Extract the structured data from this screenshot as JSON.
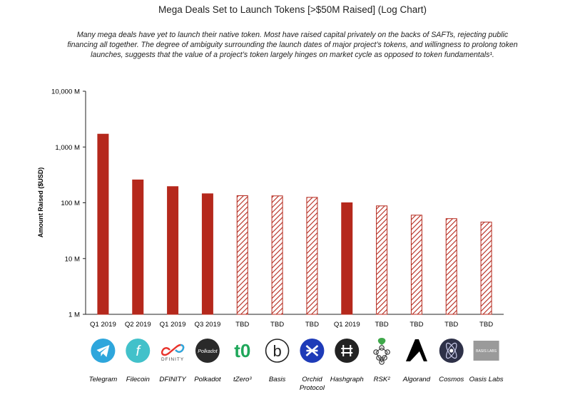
{
  "header": {
    "title": "Mega Deals Set to Launch Tokens [>$50M Raised] (Log Chart)",
    "subtitle_lines": [
      "Many mega deals have yet to launch their native token. Most have raised capital privately on the backs of SAFTs, rejecting public",
      "financing all together. The degree of ambiguity surrounding the launch dates of major project’s tokens, and willingness to prolong token",
      "launches, suggests that the value of a project’s token largely hinges on market cycle as opposed to token fundamentals¹."
    ]
  },
  "chart_data": {
    "type": "bar",
    "title": "Mega Deals Set to Launch Tokens [>$50M Raised] (Log Chart)",
    "ylabel": "Amount Raised ($USD)",
    "yscale": "log",
    "ylim": [
      1,
      10000
    ],
    "yticks": [
      {
        "value": 1,
        "label": "1 M"
      },
      {
        "value": 10,
        "label": "10 M"
      },
      {
        "value": 100,
        "label": "100 M"
      },
      {
        "value": 1000,
        "label": "1,000 M"
      },
      {
        "value": 10000,
        "label": "10,000 M"
      }
    ],
    "categories": [
      "Telegram",
      "Filecoin",
      "DFINITY",
      "Polkadot",
      "tZero",
      "Basis",
      "Orchid Protocol",
      "Hashgraph",
      "RSK",
      "Algorand",
      "Cosmos",
      "Oasis Labs"
    ],
    "category_label_lines": [
      [
        "Telegram"
      ],
      [
        "Filecoin"
      ],
      [
        "DFINITY"
      ],
      [
        "Polkadot"
      ],
      [
        "tZero³"
      ],
      [
        "Basis"
      ],
      [
        "Orchid",
        "Protocol"
      ],
      [
        "Hashgraph"
      ],
      [
        "RSK²"
      ],
      [
        "Algorand"
      ],
      [
        "Cosmos"
      ],
      [
        "Oasis Labs"
      ]
    ],
    "launch_labels": [
      "Q1 2019",
      "Q2 2019",
      "Q1 2019",
      "Q3 2019",
      "TBD",
      "TBD",
      "TBD",
      "Q1 2019",
      "TBD",
      "TBD",
      "TBD",
      "TBD"
    ],
    "values": [
      1700,
      257,
      195,
      145,
      134,
      133,
      125,
      100,
      88,
      60,
      52,
      45
    ],
    "fill_style": [
      "solid",
      "solid",
      "solid",
      "solid",
      "hatched",
      "hatched",
      "hatched",
      "solid",
      "hatched",
      "hatched",
      "hatched",
      "hatched"
    ],
    "colors": {
      "bar": "#b5281c",
      "axis": "#222222"
    },
    "grid": false,
    "legend": "none"
  },
  "logos": [
    {
      "icon": "telegram-icon",
      "color": "#2ea6dc"
    },
    {
      "icon": "filecoin-icon",
      "color": "#42c1ca"
    },
    {
      "icon": "dfinity-icon",
      "color": "#3b00b9",
      "text": "DFINITY"
    },
    {
      "icon": "polkadot-icon",
      "color": "#2a2a2a",
      "text": "Polkadot"
    },
    {
      "icon": "tzero-icon",
      "color": "#1fa75a",
      "text": "t0"
    },
    {
      "icon": "basis-icon",
      "color": "#222222",
      "text": "b"
    },
    {
      "icon": "orchid-icon",
      "color": "#1e3bb8"
    },
    {
      "icon": "hashgraph-icon",
      "color": "#222222",
      "text": "H"
    },
    {
      "icon": "rsk-icon",
      "color": "#3fa84a"
    },
    {
      "icon": "algorand-icon",
      "color": "#000000"
    },
    {
      "icon": "cosmos-icon",
      "color": "#2e3148"
    },
    {
      "icon": "oasis-labs-icon",
      "color": "#9a9a9a",
      "text": "BASIS LABS"
    }
  ]
}
